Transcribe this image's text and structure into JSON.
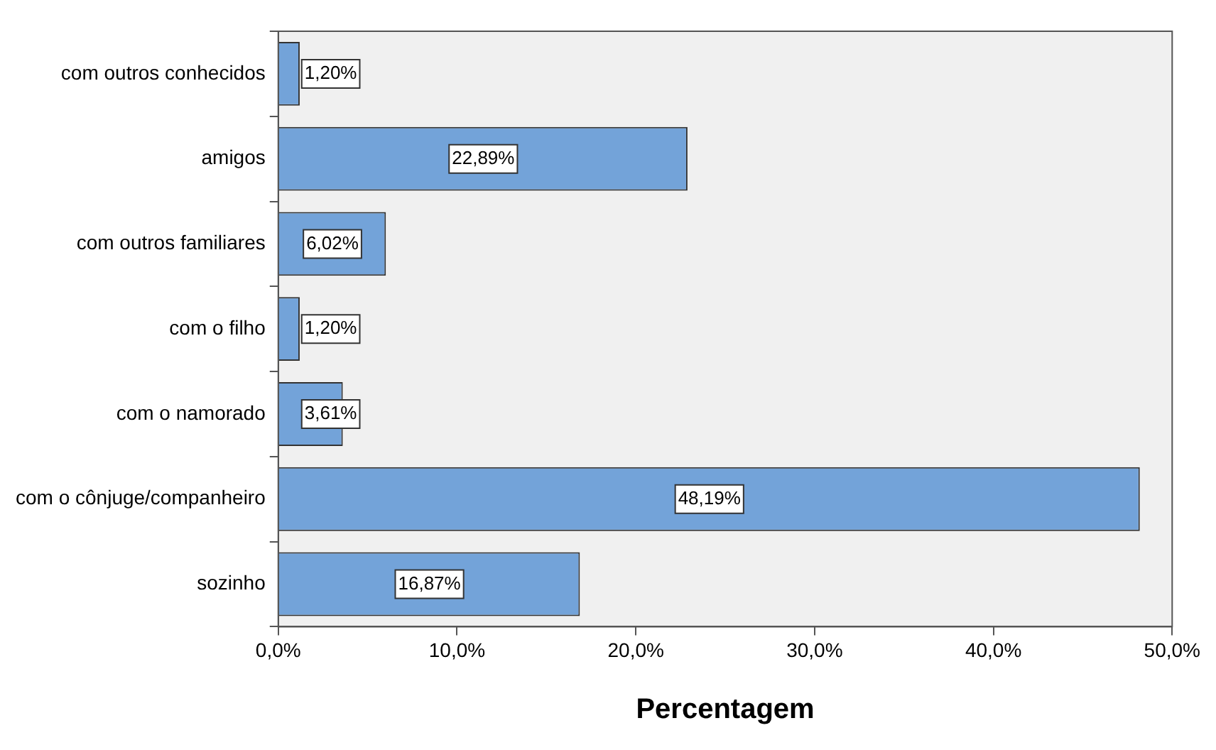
{
  "chart_data": {
    "type": "bar",
    "orientation": "horizontal",
    "xlabel": "Percentagem",
    "categories": [
      "com outros conhecidos",
      "amigos",
      "com outros familiares",
      "com o filho",
      "com o namorado",
      "com o cônjuge/companheiro",
      "sozinho"
    ],
    "values": [
      1.2,
      22.89,
      6.02,
      1.2,
      3.61,
      48.19,
      16.87
    ],
    "value_labels": [
      "1,20%",
      "22,89%",
      "6,02%",
      "1,20%",
      "3,61%",
      "48,19%",
      "16,87%"
    ],
    "color": "#73a3d9",
    "xlim": [
      0,
      50
    ],
    "xticks": [
      {
        "value": 0,
        "label": "0,0%"
      },
      {
        "value": 10,
        "label": "10,0%"
      },
      {
        "value": 20,
        "label": "20,0%"
      },
      {
        "value": 30,
        "label": "30,0%"
      },
      {
        "value": 40,
        "label": "40,0%"
      },
      {
        "value": 50,
        "label": "50,0%"
      }
    ],
    "grid": false,
    "legend": false
  }
}
